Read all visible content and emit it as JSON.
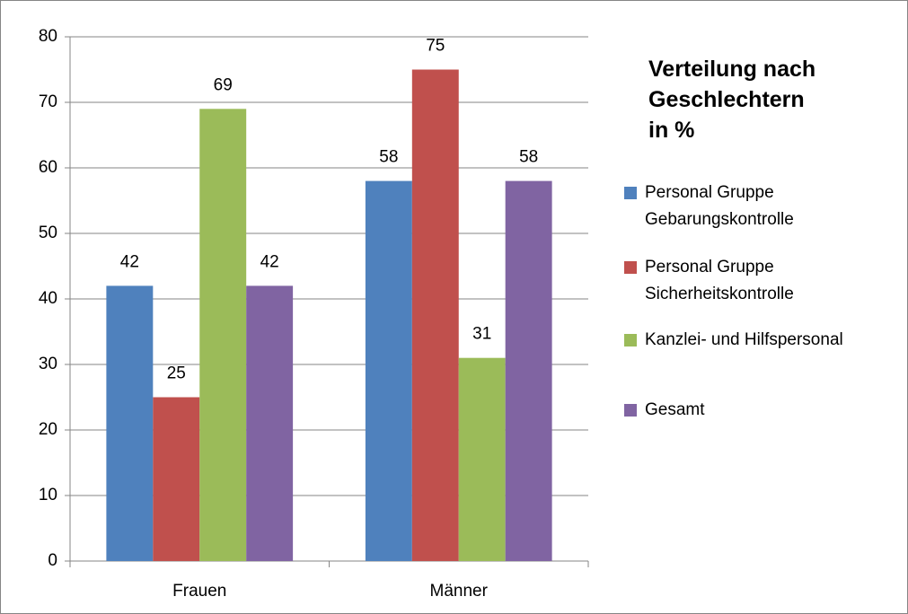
{
  "chart_data": {
    "type": "bar",
    "title": [
      "Verteilung nach",
      "Geschlechtern",
      "in %"
    ],
    "categories": [
      "Frauen",
      "Männer"
    ],
    "series": [
      {
        "name": "Personal Gruppe Gebarungskontrolle",
        "color": "#4f81bd",
        "values": [
          42,
          58
        ]
      },
      {
        "name": "Personal Gruppe Sicherheitskontrolle",
        "color": "#c0504d",
        "values": [
          25,
          75
        ]
      },
      {
        "name": "Kanzlei- und Hilfspersonal",
        "color": "#9bbb59",
        "values": [
          69,
          31
        ]
      },
      {
        "name": "Gesamt",
        "color": "#8064a2",
        "values": [
          42,
          58
        ]
      }
    ],
    "ylim": [
      0,
      80
    ],
    "yticks": [
      0,
      10,
      20,
      30,
      40,
      50,
      60,
      70,
      80
    ],
    "grid": true,
    "legend": "right"
  }
}
